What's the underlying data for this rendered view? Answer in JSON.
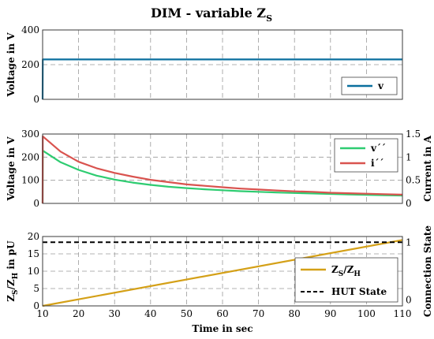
{
  "figure": {
    "title": "DIM - variable Z",
    "title_sub": "S",
    "xlabel": "Time in sec"
  },
  "chart_data": [
    {
      "type": "line",
      "ylabel": "Voltage in V",
      "xlim": [
        10,
        110
      ],
      "ylim": [
        0,
        400
      ],
      "xticks": [
        10,
        20,
        30,
        40,
        50,
        60,
        70,
        80,
        90,
        100,
        110
      ],
      "yticks": [
        0,
        200,
        400
      ],
      "grid": true,
      "legend_position": "lower-right",
      "series": [
        {
          "name": "v",
          "color": "#0a6f9e",
          "style": "solid",
          "x": [
            10,
            10.05,
            20,
            30,
            40,
            50,
            60,
            70,
            80,
            90,
            100,
            110
          ],
          "y": [
            0,
            230,
            230,
            230,
            230,
            230,
            230,
            230,
            230,
            230,
            230,
            230
          ]
        }
      ]
    },
    {
      "type": "line",
      "ylabel": "Voltage in V",
      "ylabel_right": "Current in A",
      "xlim": [
        10,
        110
      ],
      "ylim": [
        0,
        300
      ],
      "ylim_right": [
        0,
        1.5
      ],
      "xticks": [
        10,
        20,
        30,
        40,
        50,
        60,
        70,
        80,
        90,
        100,
        110
      ],
      "yticks": [
        0,
        100,
        200,
        300
      ],
      "yticks_right": [
        0,
        0.5,
        1,
        1.5
      ],
      "grid": true,
      "legend_position": "top-right",
      "series": [
        {
          "name": "v´´",
          "color": "#2ecc71",
          "style": "solid",
          "axis": "left",
          "x": [
            10,
            10.05,
            15,
            20,
            25,
            30,
            35,
            40,
            45,
            50,
            55,
            60,
            65,
            70,
            75,
            80,
            85,
            90,
            95,
            100,
            105,
            110
          ],
          "y": [
            0,
            228,
            178,
            145,
            120,
            103,
            90,
            80,
            72,
            66,
            61,
            57,
            53,
            50,
            47,
            45,
            43,
            41,
            39,
            37,
            35,
            34
          ]
        },
        {
          "name": "i´´",
          "color": "#d9534f",
          "style": "solid",
          "axis": "right",
          "x": [
            10,
            10.05,
            15,
            20,
            25,
            30,
            35,
            40,
            45,
            50,
            55,
            60,
            65,
            70,
            75,
            80,
            85,
            90,
            95,
            100,
            105,
            110
          ],
          "y": [
            0,
            1.45,
            1.12,
            0.9,
            0.76,
            0.66,
            0.58,
            0.51,
            0.46,
            0.41,
            0.38,
            0.35,
            0.32,
            0.3,
            0.28,
            0.26,
            0.25,
            0.23,
            0.22,
            0.21,
            0.2,
            0.19
          ]
        }
      ]
    },
    {
      "type": "line",
      "ylabel": "Z",
      "ylabel_sub1": "S",
      "ylabel_mid": "/Z",
      "ylabel_sub2": "H",
      "ylabel_tail": " in pU",
      "ylabel_right": "Connection State",
      "xlim": [
        10,
        110
      ],
      "ylim": [
        0,
        20
      ],
      "ylim_right": [
        -0.1,
        1.1
      ],
      "xticks": [
        10,
        20,
        30,
        40,
        50,
        60,
        70,
        80,
        90,
        100,
        110
      ],
      "yticks": [
        0,
        5,
        10,
        15,
        20
      ],
      "yticks_right": [
        0,
        1
      ],
      "grid": true,
      "legend_position": "center-right",
      "series": [
        {
          "name": "Z",
          "name_sub1": "S",
          "name_mid": "/Z",
          "name_sub2": "H",
          "color": "#d4a017",
          "style": "solid",
          "axis": "left",
          "x": [
            10,
            110
          ],
          "y": [
            0,
            19
          ]
        },
        {
          "name": "HUT State",
          "color": "#000000",
          "style": "dashed",
          "axis": "right",
          "x": [
            10,
            110
          ],
          "y": [
            1,
            1
          ]
        }
      ]
    }
  ]
}
